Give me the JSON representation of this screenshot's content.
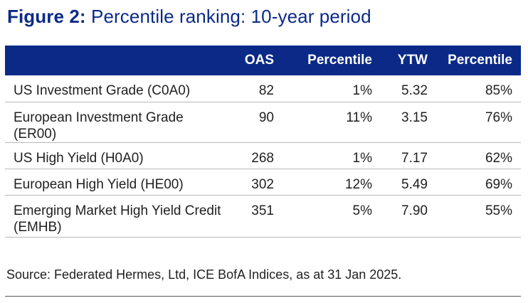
{
  "figure": {
    "label": "Figure 2:",
    "title": "Percentile ranking: 10-year period"
  },
  "table": {
    "headers": [
      "",
      "OAS",
      "Percentile",
      "YTW",
      "Percentile"
    ],
    "rows": [
      {
        "name": "US Investment Grade (C0A0)",
        "oas": "82",
        "oas_percentile": "1%",
        "ytw": "5.32",
        "ytw_percentile": "85%"
      },
      {
        "name": "European Investment Grade (ER00)",
        "oas": "90",
        "oas_percentile": "11%",
        "ytw": "3.15",
        "ytw_percentile": "76%"
      },
      {
        "name": "US High Yield (H0A0)",
        "oas": "268",
        "oas_percentile": "1%",
        "ytw": "7.17",
        "ytw_percentile": "62%"
      },
      {
        "name": "European High Yield (HE00)",
        "oas": "302",
        "oas_percentile": "12%",
        "ytw": "5.49",
        "ytw_percentile": "69%"
      },
      {
        "name": "Emerging Market High Yield Credit (EMHB)",
        "oas": "351",
        "oas_percentile": "5%",
        "ytw": "7.90",
        "ytw_percentile": "55%"
      }
    ]
  },
  "source": "Source: Federated Hermes, Ltd, ICE BofA Indices, as at 31 Jan 2025.",
  "colors": {
    "header_bg": "#0b2a87",
    "title": "#0b2a87",
    "row_divider": "#b8b8b8"
  }
}
